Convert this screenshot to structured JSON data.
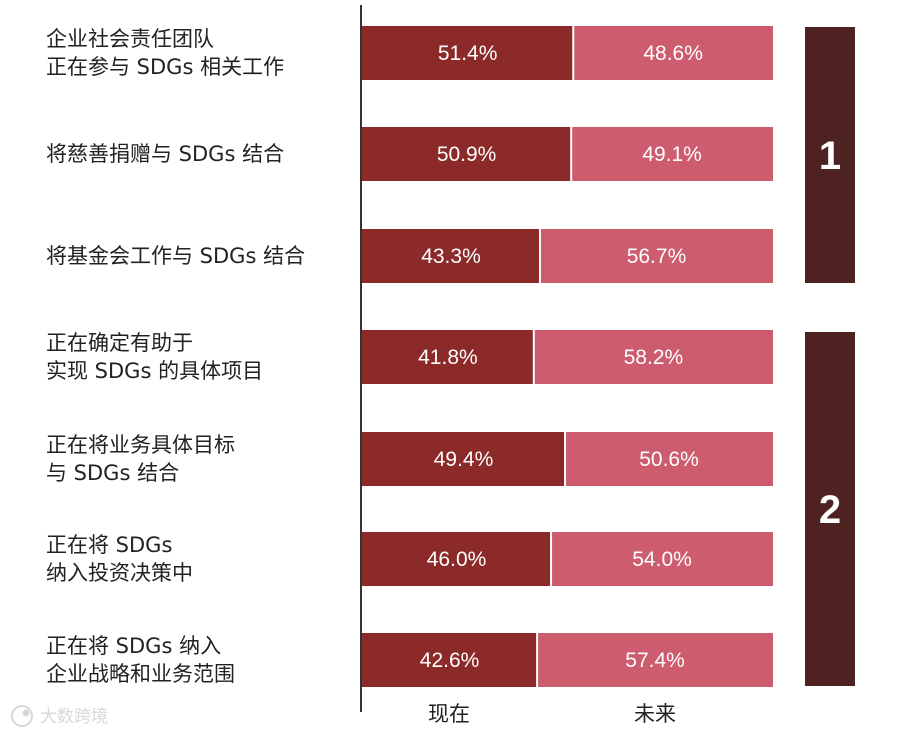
{
  "chart_data": {
    "type": "bar",
    "stacked": true,
    "orientation": "horizontal",
    "normalized_percent": true,
    "categories": [
      [
        "企业社会责任团队",
        "正在参与 SDGs 相关工作"
      ],
      [
        "将慈善捐赠与 SDGs 结合"
      ],
      [
        "将基金会工作与 SDGs 结合"
      ],
      [
        "正在确定有助于",
        "实现 SDGs 的具体项目"
      ],
      [
        "正在将业务具体目标",
        "与 SDGs 结合"
      ],
      [
        "正在将 SDGs",
        "纳入投资决策中"
      ],
      [
        "正在将 SDGs 纳入",
        "企业战略和业务范围"
      ]
    ],
    "series": [
      {
        "name": "现在",
        "color": "#8c2a2a",
        "values": [
          51.4,
          50.9,
          43.3,
          41.8,
          49.4,
          46.0,
          42.6
        ],
        "labels": [
          "51.4%",
          "50.9%",
          "43.3%",
          "41.8%",
          "49.4%",
          "46.0%",
          "42.6%"
        ]
      },
      {
        "name": "未来",
        "color": "#cc5c6e",
        "values": [
          48.6,
          49.1,
          56.7,
          58.2,
          50.6,
          54.0,
          57.4
        ],
        "labels": [
          "48.6%",
          "49.1%",
          "56.7%",
          "58.2%",
          "50.6%",
          "54.0%",
          "57.4%"
        ]
      }
    ],
    "groups": [
      {
        "label": "1",
        "categories": [
          0,
          1,
          2
        ]
      },
      {
        "label": "2",
        "categories": [
          3,
          4,
          5,
          6
        ]
      }
    ],
    "group_color": "#4f2222",
    "xlim": [
      0,
      100
    ],
    "grid": false,
    "legend": "bottom"
  },
  "watermark": {
    "text": "大数跨境",
    "icon": "camera-eye-icon"
  }
}
